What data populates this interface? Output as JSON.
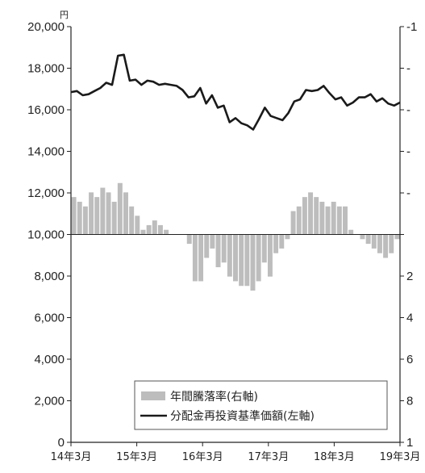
{
  "chart_data": {
    "type": "bar+line",
    "unit_left": "円",
    "left_axis": {
      "ticks": [
        "0",
        "2,000",
        "4,000",
        "6,000",
        "8,000",
        "10,000",
        "12,000",
        "14,000",
        "16,000",
        "18,000",
        "20,000"
      ],
      "ylim": [
        0,
        20000
      ]
    },
    "right_axis": {
      "ticks": [
        "1",
        "8",
        "6",
        "4",
        "2",
        "",
        "-",
        "-",
        "-",
        "-",
        "-1"
      ],
      "baseline_value": 0
    },
    "x_ticks": [
      "14年3月",
      "15年3月",
      "16年3月",
      "17年3月",
      "18年3月",
      "19年3月"
    ],
    "legend": {
      "bar_label": "年間騰落率(右軸)",
      "line_label": "分配金再投資基準価額(左軸)"
    },
    "colors": {
      "line": "#1a1a1a",
      "bars": "#bdbdbd",
      "axis": "#222222"
    },
    "line_series": {
      "name": "分配金再投資基準価額(左軸)",
      "values": [
        16850,
        16900,
        16700,
        16750,
        16900,
        17050,
        17300,
        17200,
        18600,
        18650,
        17400,
        17450,
        17200,
        17400,
        17350,
        17200,
        17250,
        17200,
        17150,
        16950,
        16600,
        16650,
        17050,
        16300,
        16700,
        16100,
        16200,
        15400,
        15600,
        15350,
        15250,
        15050,
        15550,
        16100,
        15700,
        15600,
        15500,
        15850,
        16400,
        16500,
        16950,
        16900,
        16950,
        17150,
        16800,
        16500,
        16600,
        16200,
        16350,
        16600,
        16600,
        16750,
        16400,
        16550,
        16300,
        16200,
        16350
      ]
    },
    "bar_series": {
      "name": "年間騰落率(右軸)",
      "values": [
        0.4,
        0.35,
        0.3,
        0.45,
        0.4,
        0.5,
        0.45,
        0.35,
        0.55,
        0.45,
        0.3,
        0.2,
        0.05,
        0.1,
        0.15,
        0.1,
        0.05,
        0.0,
        0.0,
        0.0,
        -0.1,
        -0.5,
        -0.5,
        -0.25,
        -0.15,
        -0.35,
        -0.3,
        -0.45,
        -0.5,
        -0.55,
        -0.55,
        -0.6,
        -0.5,
        -0.3,
        -0.45,
        -0.2,
        -0.15,
        -0.05,
        0.25,
        0.3,
        0.4,
        0.45,
        0.4,
        0.35,
        0.3,
        0.35,
        0.3,
        0.3,
        0.05,
        0.0,
        -0.05,
        -0.1,
        -0.15,
        -0.2,
        -0.25,
        -0.2,
        -0.05
      ]
    }
  }
}
